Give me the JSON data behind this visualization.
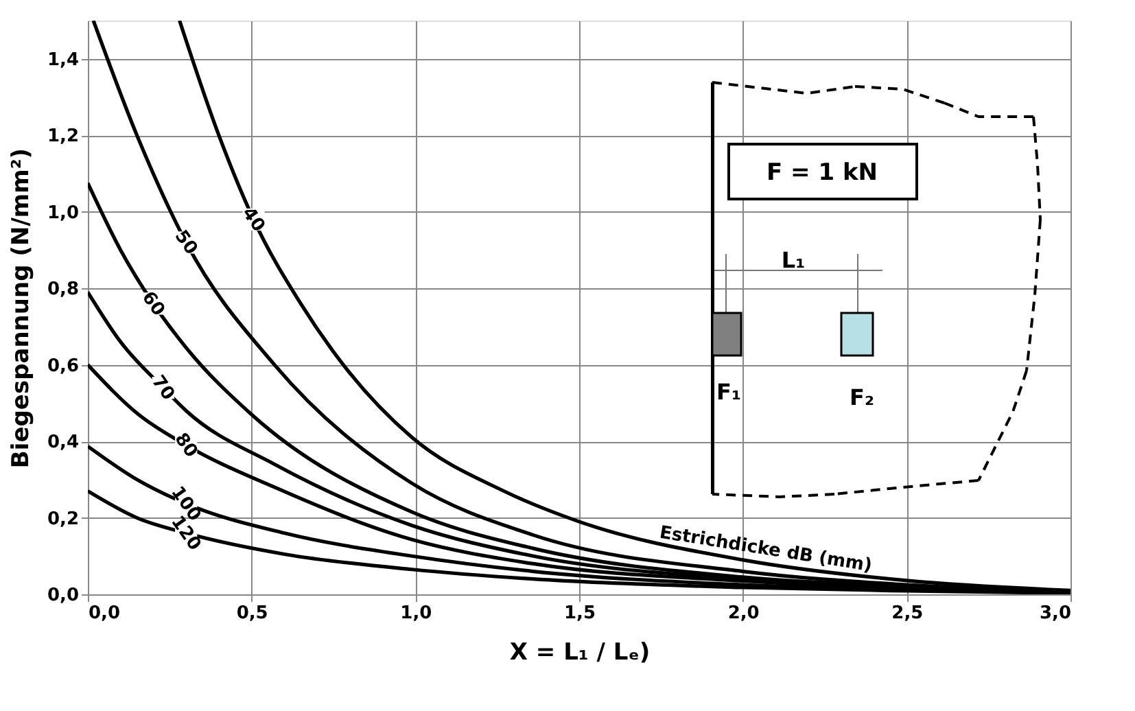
{
  "chart_data": {
    "type": "line",
    "xlabel": "X = L₁ / Lₑ)",
    "ylabel": "Biegespannung (N/mm²)",
    "series": [
      {
        "name": "40",
        "color": "#000000",
        "x": [
          0.28,
          0.4,
          0.506,
          0.65,
          0.78,
          0.99,
          1.27,
          1.5,
          2.0,
          2.5,
          3.0
        ],
        "values": [
          1.5,
          1.2,
          0.98,
          0.76,
          0.6,
          0.41,
          0.27,
          0.19,
          0.09,
          0.036,
          0.01
        ]
      },
      {
        "name": "50",
        "color": "#000000",
        "x": [
          0.017,
          0.15,
          0.3,
          0.57,
          0.99,
          1.36,
          2.0,
          2.5,
          3.0
        ],
        "values": [
          1.5,
          1.2,
          0.92,
          0.6,
          0.29,
          0.155,
          0.06,
          0.025,
          0.008
        ]
      },
      {
        "name": "60",
        "color": "#000000",
        "x": [
          0,
          0.1,
          0.2,
          0.3,
          0.5,
          0.99,
          1.36,
          2.0,
          2.5,
          3.0
        ],
        "values": [
          1.075,
          0.9,
          0.76,
          0.645,
          0.47,
          0.215,
          0.12,
          0.045,
          0.02,
          0.006
        ]
      },
      {
        "name": "70",
        "color": "#000000",
        "x": [
          0,
          0.1,
          0.23,
          0.3,
          0.57,
          0.99,
          1.36,
          2.0,
          2.5,
          3.0
        ],
        "values": [
          0.79,
          0.66,
          0.54,
          0.48,
          0.34,
          0.18,
          0.1,
          0.04,
          0.018,
          0.005
        ]
      },
      {
        "name": "80",
        "color": "#000000",
        "x": [
          0,
          0.155,
          0.3,
          0.57,
          0.99,
          1.36,
          2.0,
          2.5,
          3.0
        ],
        "values": [
          0.6,
          0.47,
          0.39,
          0.28,
          0.143,
          0.08,
          0.035,
          0.015,
          0.005
        ]
      },
      {
        "name": "100",
        "color": "#000000",
        "x": [
          0,
          0.15,
          0.3,
          0.6,
          0.99,
          1.36,
          2.0,
          2.5,
          3.0
        ],
        "values": [
          0.387,
          0.3,
          0.237,
          0.16,
          0.1,
          0.06,
          0.025,
          0.012,
          0.004
        ]
      },
      {
        "name": "120",
        "color": "#000000",
        "x": [
          0,
          0.15,
          0.3,
          0.6,
          0.99,
          1.36,
          2.0,
          2.5,
          3.0
        ],
        "values": [
          0.27,
          0.2,
          0.16,
          0.105,
          0.065,
          0.04,
          0.018,
          0.009,
          0.003
        ]
      }
    ],
    "xlim": [
      0,
      3.0
    ],
    "xticks": [
      {
        "value": 0,
        "label": "0,0"
      },
      {
        "value": 0.5,
        "label": "0,5"
      },
      {
        "value": 1.0,
        "label": "1,0"
      },
      {
        "value": 1.5,
        "label": "1,5"
      },
      {
        "value": 2.0,
        "label": "2,0"
      },
      {
        "value": 2.5,
        "label": "2,5"
      },
      {
        "value": 3.0,
        "label": "3,0"
      }
    ],
    "ylim": [
      0,
      1.5
    ],
    "yticks": [
      {
        "value": 0,
        "label": "0,0"
      },
      {
        "value": 0.2,
        "label": "0,2"
      },
      {
        "value": 0.4,
        "label": "0,4"
      },
      {
        "value": 0.6,
        "label": "0,6"
      },
      {
        "value": 0.8,
        "label": "0,8"
      },
      {
        "value": 1.0,
        "label": "1,0"
      },
      {
        "value": 1.2,
        "label": "1,2"
      },
      {
        "value": 1.4,
        "label": "1,4"
      }
    ],
    "grid": true,
    "legend": false,
    "marker": "none",
    "line_style": "solid",
    "annotations": [
      "Estrichdicke dB (mm)",
      "F = 1 kN",
      "L₁",
      "F₁",
      "F₂"
    ]
  }
}
